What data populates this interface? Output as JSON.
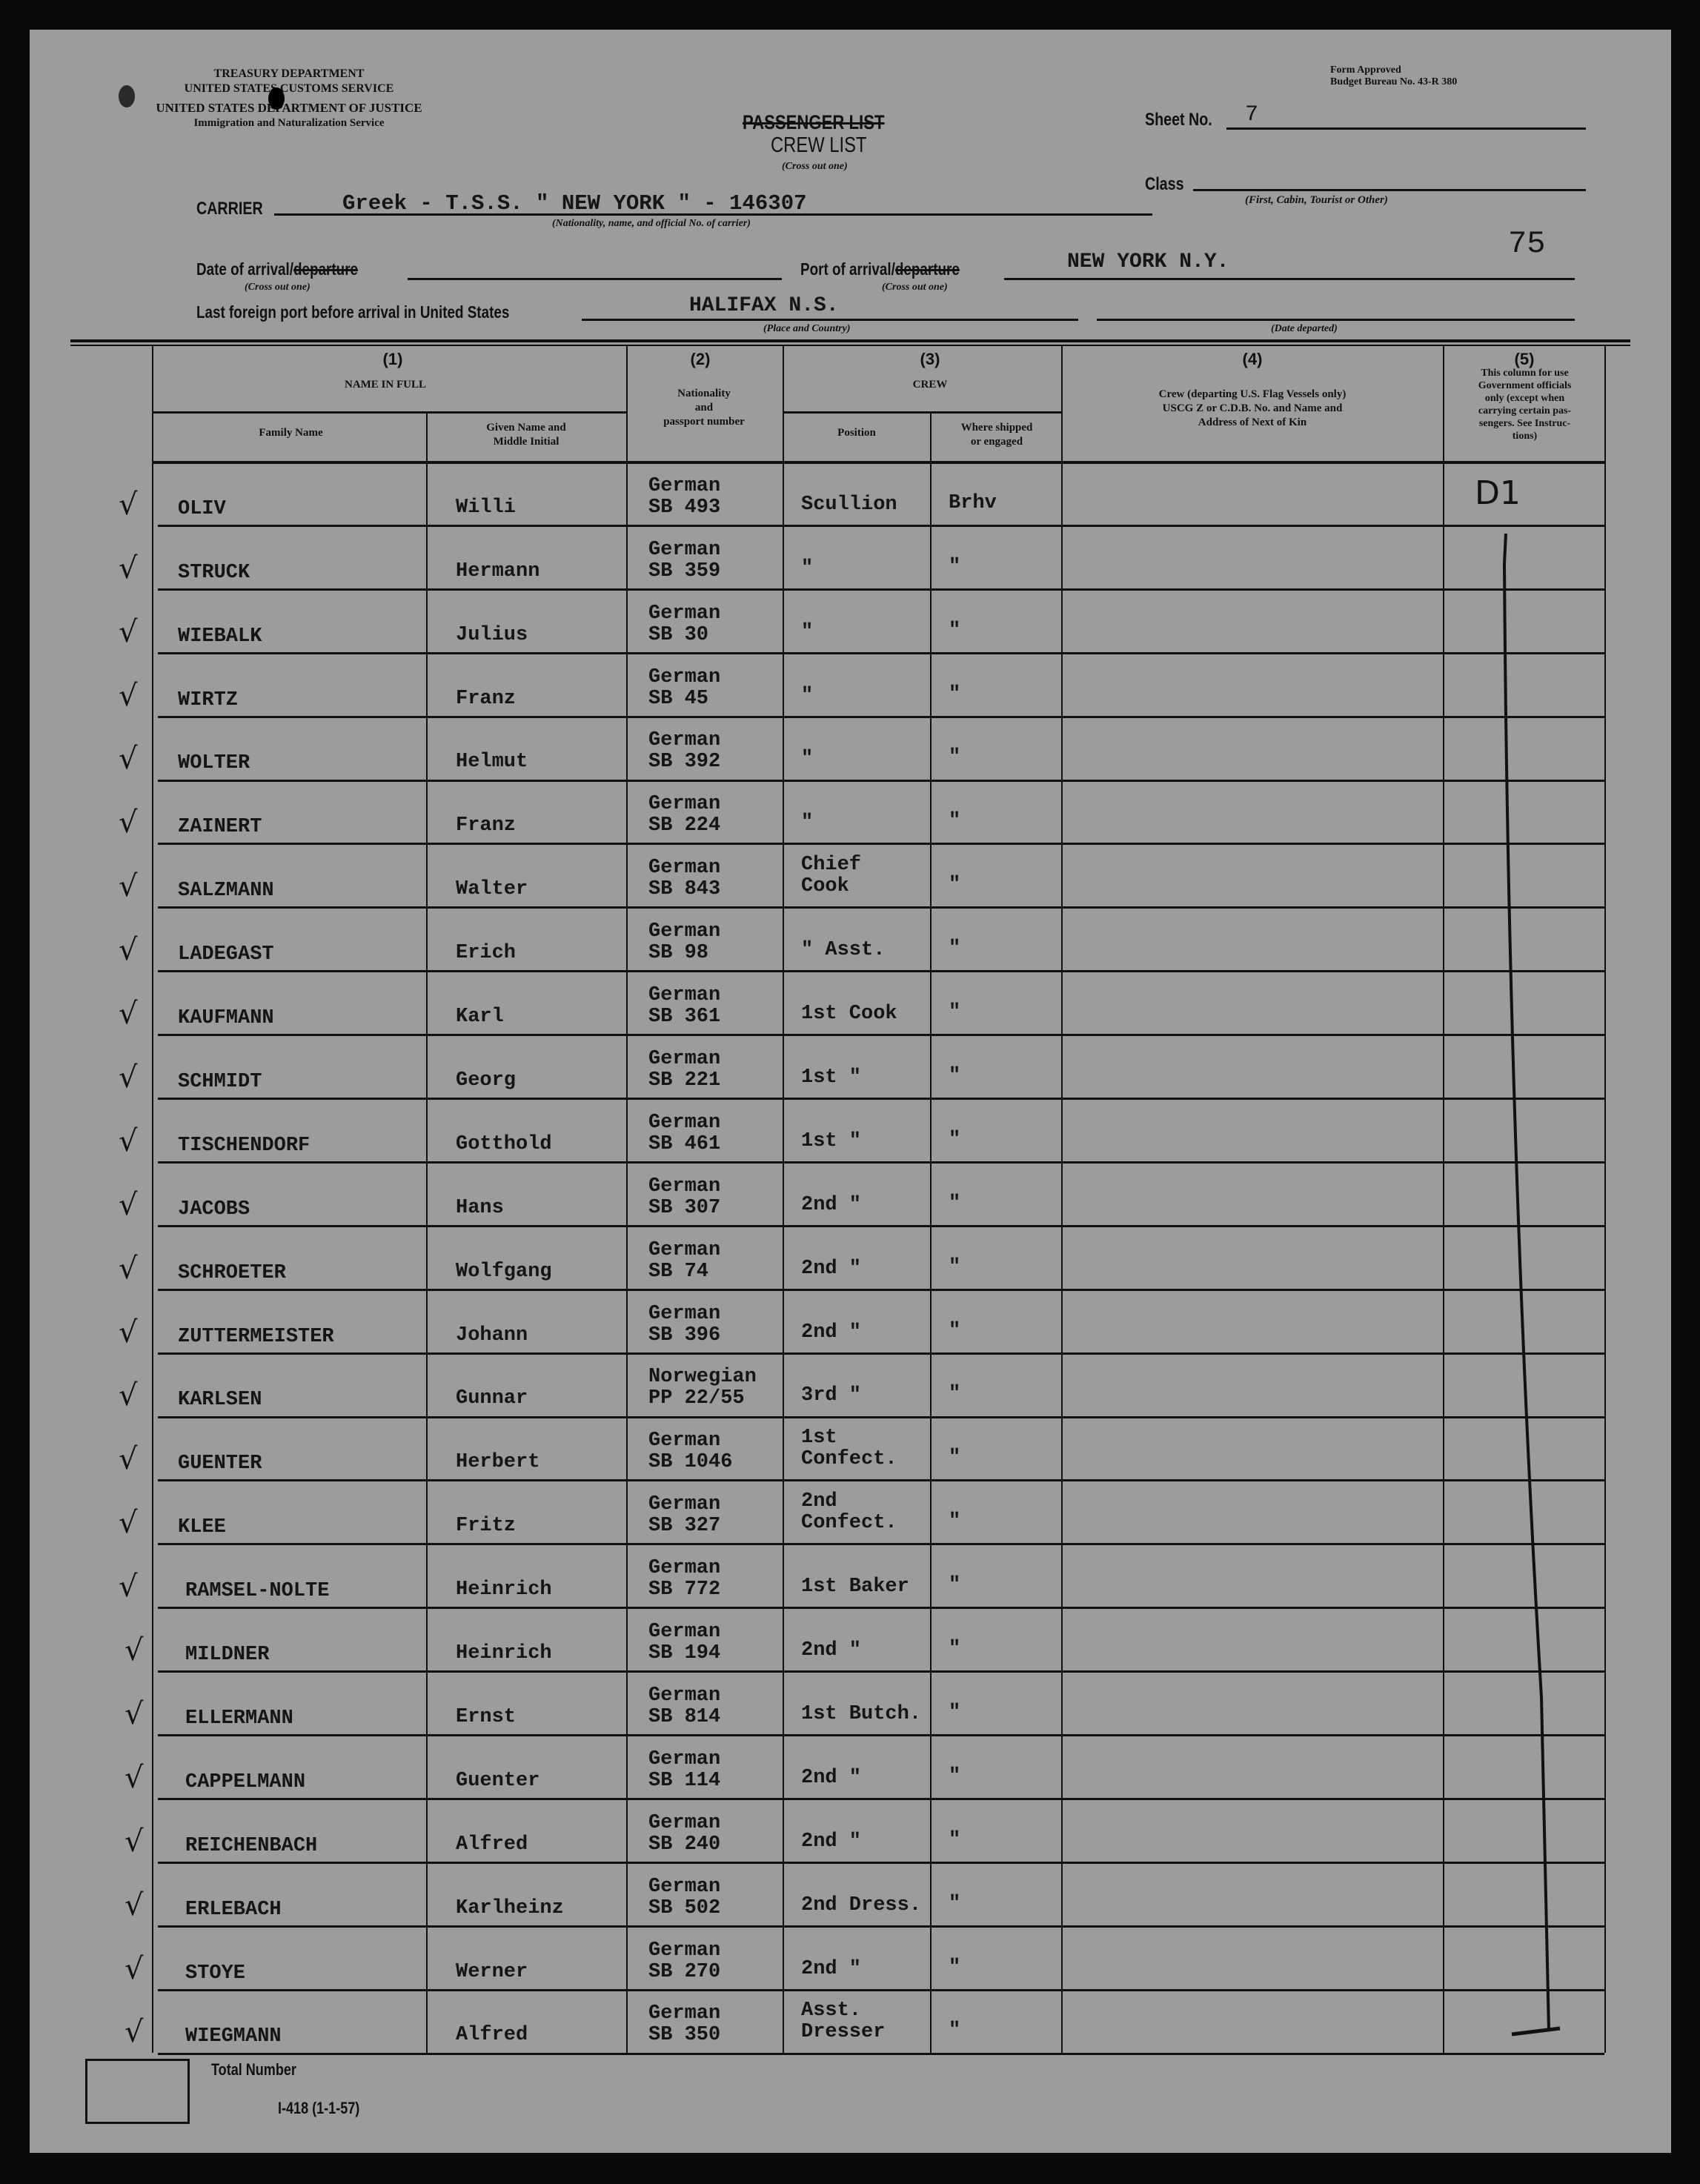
{
  "agency": {
    "line1": "TREASURY DEPARTMENT",
    "line2": "UNITED STATES CUSTOMS SERVICE",
    "line3": "UNITED STATES DEPARTMENT OF JUSTICE",
    "line4": "Immigration and Naturalization Service"
  },
  "form_approval": {
    "line1": "Form Approved",
    "line2": "Budget Bureau No. 43-R 380"
  },
  "title": {
    "crossed": "PASSENGER LIST",
    "main": "CREW LIST",
    "note": "(Cross out one)"
  },
  "sheet": {
    "label": "Sheet No.",
    "value": "7"
  },
  "class": {
    "label": "Class",
    "value": "",
    "note": "(First, Cabin, Tourist or Other)"
  },
  "carrier": {
    "label": "CARRIER",
    "value": "Greek - T.S.S. \" NEW YORK \" - 146307",
    "note": "(Nationality, name, and official No. of carrier)"
  },
  "page_number": "75",
  "date_of_arrival": {
    "label": "Date of arrival/",
    "crossed": "departure",
    "value": "",
    "note": "(Cross out one)"
  },
  "port_of_arrival": {
    "label": "Port of arrival/",
    "crossed": "departure",
    "value": "NEW YORK N.Y.",
    "note": "(Cross out one)"
  },
  "last_port": {
    "label": "Last foreign port before arrival in United States",
    "value": "HALIFAX N.S.",
    "note": "(Place and Country)",
    "date_note": "(Date departed)",
    "date_value": ""
  },
  "columns": {
    "c1_num": "(1)",
    "c1_title": "NAME IN FULL",
    "family": "Family Name",
    "given": "Given Name and\nMiddle Initial",
    "c2_num": "(2)",
    "c2_title": "Nationality\nand\npassport number",
    "c3_num": "(3)",
    "c3_title": "CREW",
    "position": "Position",
    "shipped": "Where shipped\nor engaged",
    "c4_num": "(4)",
    "c4_title": "Crew (departing U.S. Flag Vessels only)\nUSCG Z or C.D.B. No. and Name and\nAddress of Next of Kin",
    "c5_num": "(5)",
    "c5_title": "This column for use\nGovernment officials\nonly (except when\ncarrying certain pas-\nsengers. See Instruc-\ntions)"
  },
  "rows": [
    {
      "family": "OLIV",
      "given": "Willi",
      "nationality": "German",
      "passport": "SB 493",
      "position": "Scullion",
      "shipped": "Brhv"
    },
    {
      "family": "STRUCK",
      "given": "Hermann",
      "nationality": "German",
      "passport": "SB 359",
      "position": "\"",
      "shipped": "\""
    },
    {
      "family": "WIEBALK",
      "given": "Julius",
      "nationality": "German",
      "passport": "SB 30",
      "position": "\"",
      "shipped": "\""
    },
    {
      "family": "WIRTZ",
      "given": "Franz",
      "nationality": "German",
      "passport": "SB 45",
      "position": "\"",
      "shipped": "\""
    },
    {
      "family": "WOLTER",
      "given": "Helmut",
      "nationality": "German",
      "passport": "SB 392",
      "position": "\"",
      "shipped": "\""
    },
    {
      "family": "ZAINERT",
      "given": "Franz",
      "nationality": "German",
      "passport": "SB 224",
      "position": "\"",
      "shipped": "\""
    },
    {
      "family": "SALZMANN",
      "given": "Walter",
      "nationality": "German",
      "passport": "SB 843",
      "position": "Chief\nCook",
      "shipped": "\""
    },
    {
      "family": "LADEGAST",
      "given": "Erich",
      "nationality": "German",
      "passport": "SB 98",
      "position": "\"  Asst.",
      "shipped": "\""
    },
    {
      "family": "KAUFMANN",
      "given": "Karl",
      "nationality": "German",
      "passport": "SB 361",
      "position": "1st Cook",
      "shipped": "\""
    },
    {
      "family": "SCHMIDT",
      "given": "Georg",
      "nationality": "German",
      "passport": "SB 221",
      "position": "1st \"",
      "shipped": "\""
    },
    {
      "family": "TISCHENDORF",
      "given": "Gotthold",
      "nationality": "German",
      "passport": "SB 461",
      "position": "1st \"",
      "shipped": "\""
    },
    {
      "family": "JACOBS",
      "given": "Hans",
      "nationality": "German",
      "passport": "SB 307",
      "position": "2nd \"",
      "shipped": "\""
    },
    {
      "family": "SCHROETER",
      "given": "Wolfgang",
      "nationality": "German",
      "passport": "SB 74",
      "position": "2nd \"",
      "shipped": "\""
    },
    {
      "family": "ZUTTERMEISTER",
      "given": "Johann",
      "nationality": "German",
      "passport": "SB 396",
      "position": "2nd \"",
      "shipped": "\""
    },
    {
      "family": "KARLSEN",
      "given": "Gunnar",
      "nationality": "Norwegian",
      "passport": "PP 22/55",
      "position": "3rd \"",
      "shipped": "\""
    },
    {
      "family": "GUENTER",
      "given": "Herbert",
      "nationality": "German",
      "passport": "SB 1046",
      "position": "1st\nConfect.",
      "shipped": "\""
    },
    {
      "family": "KLEE",
      "given": "Fritz",
      "nationality": "German",
      "passport": "SB 327",
      "position": "2nd\nConfect.",
      "shipped": "\""
    },
    {
      "family": "RAMSEL-NOLTE",
      "given": "Heinrich",
      "nationality": "German",
      "passport": "SB 772",
      "position": "1st Baker",
      "shipped": "\""
    },
    {
      "family": "MILDNER",
      "given": "Heinrich",
      "nationality": "German",
      "passport": "SB 194",
      "position": "2nd \"",
      "shipped": "\""
    },
    {
      "family": "ELLERMANN",
      "given": "Ernst",
      "nationality": "German",
      "passport": "SB 814",
      "position": "1st Butch.",
      "shipped": "\""
    },
    {
      "family": "CAPPELMANN",
      "given": "Guenter",
      "nationality": "German",
      "passport": "SB 114",
      "position": "2nd \"",
      "shipped": "\""
    },
    {
      "family": "REICHENBACH",
      "given": "Alfred",
      "nationality": "German",
      "passport": "SB 240",
      "position": "2nd \"",
      "shipped": "\""
    },
    {
      "family": "ERLEBACH",
      "given": "Karlheinz",
      "nationality": "German",
      "passport": "SB 502",
      "position": "2nd Dress.",
      "shipped": "\""
    },
    {
      "family": "STOYE",
      "given": "Werner",
      "nationality": "German",
      "passport": "SB 270",
      "position": "2nd \"",
      "shipped": "\""
    },
    {
      "family": "WIEGMANN",
      "given": "Alfred",
      "nationality": "German",
      "passport": "SB 350",
      "position": "Asst.\nDresser",
      "shipped": "\""
    }
  ],
  "official_annotation": "D1",
  "footer": {
    "total_label": "Total Number",
    "total_value": "",
    "form_number": "I-418 (1-1-57)"
  }
}
